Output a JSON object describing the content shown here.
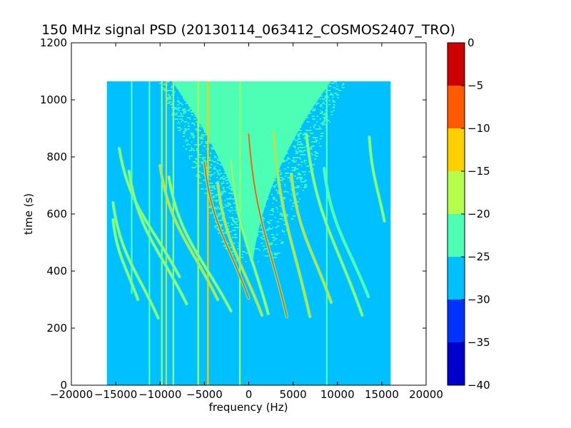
{
  "chart_data": {
    "type": "heatmap",
    "title": "150 MHz signal PSD (20130114_063412_COSMOS2407_TRO)",
    "xlabel": "frequency (Hz)",
    "ylabel": "time (s)",
    "xlim": [
      -20000,
      20000
    ],
    "ylim": [
      0,
      1200
    ],
    "x_ticks": [
      -20000,
      -15000,
      -10000,
      -5000,
      0,
      5000,
      10000,
      15000,
      20000
    ],
    "x_tick_labels": [
      "−20000",
      "−15000",
      "−10000",
      "−5000",
      "0",
      "5000",
      "10000",
      "15000",
      "20000"
    ],
    "y_ticks": [
      0,
      200,
      400,
      600,
      800,
      1000,
      1200
    ],
    "y_tick_labels": [
      "0",
      "200",
      "400",
      "600",
      "800",
      "1000",
      "1200"
    ],
    "data_extent": {
      "x": [
        -16000,
        16000
      ],
      "y": [
        0,
        1065
      ]
    },
    "background_level": -27.5,
    "colorbar": {
      "levels": [
        -40,
        -35,
        -30,
        -25,
        -20,
        -15,
        -10,
        -5,
        0
      ],
      "tick_labels": [
        "−40",
        "−35",
        "−30",
        "−25",
        "−20",
        "−15",
        "−10",
        "−5",
        "0"
      ],
      "colors": [
        "#0000cd",
        "#0033ff",
        "#00c0ff",
        "#4dffb4",
        "#b4ff4d",
        "#ffd000",
        "#ff5a00",
        "#cd0000"
      ]
    },
    "noise_region": {
      "level": -22.5,
      "x_range": [
        -11000,
        10000
      ],
      "y_range": [
        430,
        1065
      ]
    },
    "vertical_lines": [
      {
        "x": -13200,
        "y_range": [
          320,
          1065
        ],
        "level": -22.5
      },
      {
        "x": -11200,
        "y_range": [
          0,
          1065
        ],
        "level": -22.5
      },
      {
        "x": -9800,
        "y_range": [
          0,
          1065
        ],
        "level": -17.5
      },
      {
        "x": -9300,
        "y_range": [
          0,
          1065
        ],
        "level": -12.5
      },
      {
        "x": -8500,
        "y_range": [
          0,
          1065
        ],
        "level": -17.5
      },
      {
        "x": -5700,
        "y_range": [
          0,
          1065
        ],
        "level": -17.5
      },
      {
        "x": -4600,
        "y_range": [
          0,
          1065
        ],
        "level": -12.5
      },
      {
        "x": -1000,
        "y_range": [
          0,
          1065
        ],
        "level": -17.5
      },
      {
        "x": 8800,
        "y_range": [
          0,
          1065
        ],
        "level": -22.5
      }
    ],
    "doppler_tracks": [
      {
        "x_start": -15300,
        "y_start": 640,
        "x_end": -10200,
        "y_end": 235,
        "level": -17.5
      },
      {
        "x_start": -15300,
        "y_start": 580,
        "x_end": -12500,
        "y_end": 300,
        "level": -17.5
      },
      {
        "x_start": -14600,
        "y_start": 830,
        "x_end": -7800,
        "y_end": 380,
        "level": -17.5
      },
      {
        "x_start": -13500,
        "y_start": 750,
        "x_end": -7000,
        "y_end": 285,
        "level": -17.5
      },
      {
        "x_start": -10000,
        "y_start": 770,
        "x_end": -3500,
        "y_end": 300,
        "level": -12.5
      },
      {
        "x_start": -9000,
        "y_start": 730,
        "x_end": -2000,
        "y_end": 260,
        "level": -17.5
      },
      {
        "x_start": -5000,
        "y_start": 780,
        "x_end": 0,
        "y_end": 305,
        "level": -7.5
      },
      {
        "x_start": -3500,
        "y_start": 710,
        "x_end": 1500,
        "y_end": 245,
        "level": -12.5
      },
      {
        "x_start": -2000,
        "y_start": 790,
        "x_end": 2200,
        "y_end": 250,
        "level": -17.5
      },
      {
        "x_start": 0,
        "y_start": 880,
        "x_end": 4300,
        "y_end": 240,
        "level": -7.5
      },
      {
        "x_start": 2800,
        "y_start": 890,
        "x_end": 6900,
        "y_end": 240,
        "level": -12.5
      },
      {
        "x_start": 4800,
        "y_start": 740,
        "x_end": 9300,
        "y_end": 290,
        "level": -12.5
      },
      {
        "x_start": 6500,
        "y_start": 880,
        "x_end": 12800,
        "y_end": 245,
        "level": -17.5
      },
      {
        "x_start": 8500,
        "y_start": 760,
        "x_end": 13500,
        "y_end": 310,
        "level": -22.5
      },
      {
        "x_start": 13600,
        "y_start": 870,
        "x_end": 15300,
        "y_end": 575,
        "level": -17.5
      }
    ]
  }
}
